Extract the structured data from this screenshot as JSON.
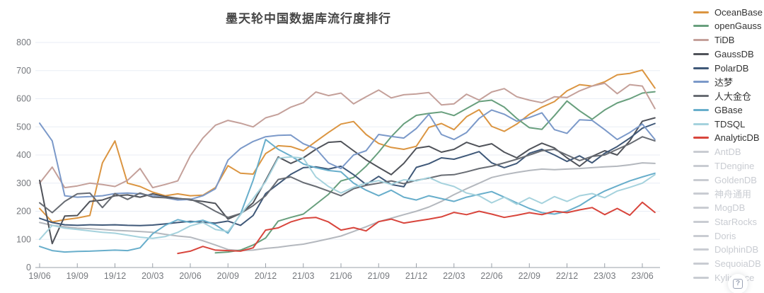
{
  "chart_data": {
    "type": "line",
    "title": "墨天轮中国数据库流行度排行",
    "xlabel": "",
    "ylabel": "",
    "ylim": [
      0,
      800
    ],
    "y_ticks": [
      0,
      100,
      200,
      300,
      400,
      500,
      600,
      700,
      800
    ],
    "x_tick_labels": [
      "19/06",
      "19/09",
      "19/12",
      "20/03",
      "20/06",
      "20/09",
      "20/12",
      "21/03",
      "21/06",
      "21/09",
      "21/12",
      "22/03",
      "22/06",
      "22/09",
      "22/12",
      "23/03",
      "23/06"
    ],
    "grid": true,
    "legend_position": "right",
    "x": [
      "19/06",
      "19/07",
      "19/08",
      "19/09",
      "19/10",
      "19/11",
      "19/12",
      "20/01",
      "20/02",
      "20/03",
      "20/04",
      "20/05",
      "20/06",
      "20/07",
      "20/08",
      "20/09",
      "20/10",
      "20/11",
      "20/12",
      "21/01",
      "21/02",
      "21/03",
      "21/04",
      "21/05",
      "21/06",
      "21/07",
      "21/08",
      "21/09",
      "21/10",
      "21/11",
      "21/12",
      "22/01",
      "22/02",
      "22/03",
      "22/04",
      "22/05",
      "22/06",
      "22/07",
      "22/08",
      "22/09",
      "22/10",
      "22/11",
      "22/12",
      "23/01",
      "23/02",
      "23/03",
      "23/04",
      "23/05",
      "23/06",
      "23/07"
    ],
    "series": [
      {
        "name": "TDengine",
        "color": "#b4b8be",
        "state": "dimmed",
        "values": [
          160,
          150,
          145,
          140,
          138,
          135,
          132,
          130,
          128,
          125,
          118,
          112,
          108,
          95,
          80,
          64,
          60,
          62,
          68,
          72,
          78,
          83,
          92,
          102,
          112,
          128,
          145,
          163,
          175,
          188,
          200,
          215,
          235,
          259,
          280,
          300,
          320,
          330,
          338,
          345,
          350,
          348,
          350,
          352,
          355,
          358,
          360,
          365,
          372,
          370
        ]
      },
      {
        "name": "OceanBase",
        "color": "#db9541",
        "state": "enabled",
        "values": [
          210,
          162,
          170,
          176,
          185,
          372,
          450,
          300,
          288,
          268,
          255,
          262,
          255,
          257,
          284,
          362,
          335,
          332,
          405,
          433,
          430,
          415,
          448,
          480,
          510,
          519,
          473,
          441,
          427,
          420,
          431,
          498,
          512,
          490,
          536,
          561,
          502,
          484,
          510,
          545,
          570,
          590,
          628,
          650,
          645,
          660,
          685,
          690,
          702,
          638
        ]
      },
      {
        "name": "openGauss",
        "color": "#689f7d",
        "state": "enabled",
        "values": [
          null,
          null,
          null,
          null,
          null,
          null,
          null,
          null,
          null,
          null,
          null,
          null,
          null,
          null,
          52,
          55,
          62,
          80,
          105,
          165,
          178,
          190,
          225,
          260,
          308,
          320,
          360,
          410,
          465,
          511,
          541,
          548,
          553,
          540,
          565,
          590,
          595,
          570,
          530,
          497,
          491,
          540,
          592,
          557,
          527,
          560,
          585,
          600,
          620,
          625
        ]
      },
      {
        "name": "TiDB",
        "color": "#c4a09a",
        "state": "enabled",
        "values": [
          300,
          357,
          284,
          290,
          300,
          295,
          288,
          310,
          352,
          284,
          295,
          308,
          397,
          460,
          506,
          523,
          513,
          500,
          532,
          545,
          570,
          586,
          624,
          611,
          620,
          582,
          607,
          631,
          603,
          614,
          617,
          622,
          578,
          582,
          616,
          595,
          624,
          636,
          607,
          595,
          586,
          607,
          604,
          628,
          645,
          655,
          618,
          650,
          645,
          565
        ]
      },
      {
        "name": "GaussDB",
        "color": "#50535a",
        "state": "enabled",
        "values": [
          310,
          85,
          183,
          185,
          235,
          240,
          255,
          258,
          250,
          262,
          252,
          246,
          240,
          235,
          228,
          172,
          192,
          230,
          310,
          393,
          370,
          390,
          420,
          445,
          448,
          415,
          383,
          356,
          330,
          370,
          424,
          431,
          410,
          420,
          445,
          430,
          440,
          410,
          390,
          420,
          442,
          425,
          390,
          360,
          395,
          415,
          400,
          450,
          520,
          532
        ]
      },
      {
        "name": "PolarDB",
        "color": "#3f5878",
        "state": "enabled",
        "values": [
          175,
          160,
          152,
          150,
          152,
          151,
          152,
          150,
          149,
          151,
          155,
          160,
          164,
          161,
          158,
          165,
          150,
          185,
          263,
          297,
          331,
          355,
          358,
          350,
          360,
          330,
          295,
          324,
          295,
          287,
          356,
          369,
          390,
          385,
          398,
          412,
          372,
          355,
          370,
          406,
          420,
          400,
          377,
          397,
          372,
          406,
          430,
          460,
          495,
          512
        ]
      },
      {
        "name": "达梦",
        "color": "#7b99c9",
        "state": "enabled",
        "values": [
          513,
          450,
          255,
          250,
          252,
          255,
          263,
          265,
          262,
          255,
          248,
          240,
          242,
          255,
          280,
          382,
          423,
          448,
          465,
          470,
          471,
          440,
          423,
          372,
          352,
          400,
          415,
          473,
          466,
          460,
          494,
          545,
          473,
          455,
          480,
          530,
          560,
          545,
          520,
          533,
          550,
          490,
          477,
          525,
          523,
          490,
          455,
          480,
          510,
          455
        ]
      },
      {
        "name": "人大金仓",
        "color": "#686c73",
        "state": "enabled",
        "values": [
          230,
          195,
          235,
          262,
          265,
          213,
          263,
          242,
          265,
          250,
          248,
          245,
          243,
          225,
          200,
          178,
          192,
          220,
          255,
          313,
          322,
          302,
          288,
          272,
          255,
          280,
          292,
          300,
          308,
          298,
          310,
          318,
          328,
          330,
          340,
          352,
          360,
          372,
          385,
          400,
          415,
          420,
          400,
          380,
          395,
          400,
          420,
          440,
          465,
          450
        ]
      },
      {
        "name": "GBase",
        "color": "#68aecb",
        "state": "enabled",
        "values": [
          75,
          60,
          55,
          57,
          58,
          60,
          62,
          60,
          70,
          120,
          150,
          170,
          160,
          168,
          152,
          122,
          190,
          310,
          455,
          420,
          397,
          368,
          355,
          345,
          340,
          300,
          275,
          255,
          275,
          250,
          240,
          255,
          245,
          235,
          250,
          260,
          270,
          250,
          230,
          210,
          195,
          190,
          200,
          220,
          248,
          272,
          290,
          308,
          322,
          335
        ]
      },
      {
        "name": "TDSQL",
        "color": "#a5d2dd",
        "state": "enabled",
        "values": [
          100,
          150,
          140,
          135,
          130,
          125,
          122,
          115,
          108,
          104,
          110,
          125,
          148,
          160,
          135,
          128,
          188,
          245,
          305,
          389,
          393,
          389,
          322,
          288,
          265,
          285,
          300,
          309,
          295,
          312,
          308,
          320,
          300,
          288,
          265,
          255,
          230,
          250,
          225,
          248,
          228,
          252,
          235,
          255,
          263,
          248,
          272,
          285,
          300,
          330
        ]
      },
      {
        "name": "AnalyticDB",
        "color": "#d8453c",
        "state": "enabled",
        "values": [
          null,
          null,
          null,
          null,
          null,
          null,
          null,
          null,
          null,
          null,
          null,
          50,
          58,
          75,
          62,
          60,
          58,
          70,
          133,
          141,
          162,
          175,
          178,
          162,
          133,
          142,
          130,
          163,
          172,
          158,
          165,
          172,
          180,
          196,
          188,
          200,
          190,
          178,
          186,
          195,
          188,
          200,
          195,
          205,
          213,
          188,
          210,
          186,
          232,
          196
        ]
      }
    ]
  },
  "legend": {
    "items": [
      {
        "label": "OceanBase",
        "color": "#db9541",
        "enabled": true
      },
      {
        "label": "openGauss",
        "color": "#689f7d",
        "enabled": true
      },
      {
        "label": "TiDB",
        "color": "#c4a09a",
        "enabled": true
      },
      {
        "label": "GaussDB",
        "color": "#50535a",
        "enabled": true
      },
      {
        "label": "PolarDB",
        "color": "#3f5878",
        "enabled": true
      },
      {
        "label": "达梦",
        "color": "#7b99c9",
        "enabled": true
      },
      {
        "label": "人大金仓",
        "color": "#686c73",
        "enabled": true
      },
      {
        "label": "GBase",
        "color": "#68aecb",
        "enabled": true
      },
      {
        "label": "TDSQL",
        "color": "#a5d2dd",
        "enabled": true
      },
      {
        "label": "AnalyticDB",
        "color": "#d8453c",
        "enabled": true
      },
      {
        "label": "AntDB",
        "color": "#c9ccd2",
        "enabled": false
      },
      {
        "label": "TDengine",
        "color": "#c9ccd2",
        "enabled": false
      },
      {
        "label": "GoldenDB",
        "color": "#c9ccd2",
        "enabled": false
      },
      {
        "label": "神舟通用",
        "color": "#c9ccd2",
        "enabled": false
      },
      {
        "label": "MogDB",
        "color": "#c9ccd2",
        "enabled": false
      },
      {
        "label": "StarRocks",
        "color": "#c9ccd2",
        "enabled": false
      },
      {
        "label": "Doris",
        "color": "#c9ccd2",
        "enabled": false
      },
      {
        "label": "DolphinDB",
        "color": "#c9ccd2",
        "enabled": false
      },
      {
        "label": "SequoiaDB",
        "color": "#c9ccd2",
        "enabled": false
      },
      {
        "label": "Kyligence",
        "color": "#c9ccd2",
        "enabled": false
      }
    ]
  },
  "help": {
    "glyph": "?"
  },
  "colors": {
    "gridline": "#e8eef6",
    "axis_line": "#9aa0a8",
    "tick_label": "#76797e",
    "title_text": "#474747"
  }
}
